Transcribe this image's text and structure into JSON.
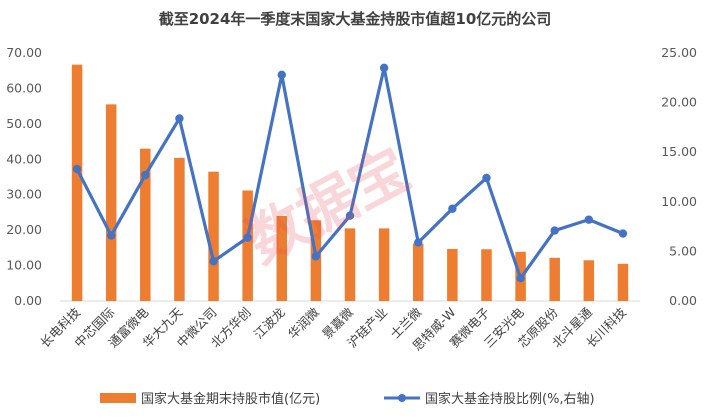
{
  "chart_data": {
    "type": "bar+line",
    "title": "截至2024年一季度末国家大基金持股市值超10亿元的公司",
    "categories": [
      "长电科技",
      "中芯国际",
      "通富微电",
      "华大九天",
      "中微公司",
      "北方华创",
      "江波龙",
      "华润微",
      "景嘉微",
      "沪硅产业",
      "士兰微",
      "思特威-W",
      "赛微电子",
      "三安光电",
      "芯原股份",
      "北斗星通",
      "长川科技"
    ],
    "series": [
      {
        "name": "国家大基金期末持股市值(亿元)",
        "type": "bar",
        "axis": "left",
        "color": "#ed7d31",
        "values": [
          66.7,
          55.5,
          43.0,
          40.4,
          36.5,
          31.2,
          24.0,
          22.8,
          20.5,
          20.5,
          16.2,
          14.7,
          14.6,
          13.9,
          12.2,
          11.5,
          10.5
        ]
      },
      {
        "name": "国家大基金持股比例(%,右轴)",
        "type": "line",
        "axis": "right",
        "color": "#4472c4",
        "values": [
          13.3,
          6.6,
          12.7,
          18.4,
          4.0,
          6.4,
          22.8,
          4.5,
          8.6,
          23.5,
          5.9,
          9.3,
          12.4,
          2.3,
          7.1,
          8.2,
          6.8
        ]
      }
    ],
    "y_left": {
      "min": 0,
      "max": 70,
      "step": 10,
      "ticks": [
        "0.00",
        "10.00",
        "20.00",
        "30.00",
        "40.00",
        "50.00",
        "60.00",
        "70.00"
      ]
    },
    "y_right": {
      "min": 0,
      "max": 25,
      "step": 5,
      "ticks": [
        "0.00",
        "5.00",
        "10.00",
        "15.00",
        "20.00",
        "25.00"
      ]
    },
    "legend_position": "bottom",
    "grid": false,
    "watermark": "数据宝"
  }
}
